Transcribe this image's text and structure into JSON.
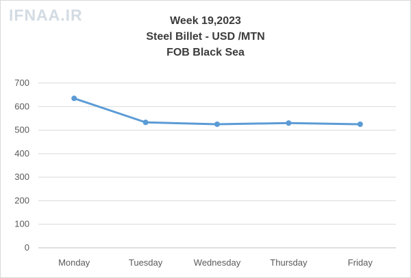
{
  "watermark": "IFNAA.IR",
  "chart_data": {
    "type": "line",
    "title": "Week 19,2023",
    "subtitle": "Steel Billet - USD /MTN",
    "subtitle2": "FOB Black Sea",
    "categories": [
      "Monday",
      "Tuesday",
      "Wednesday",
      "Thursday",
      "Friday"
    ],
    "series": [
      {
        "values": [
          635,
          533,
          525,
          530,
          525
        ]
      }
    ],
    "ylim": [
      0,
      700
    ],
    "yticks": [
      0,
      100,
      200,
      300,
      400,
      500,
      600,
      700
    ],
    "grid": true,
    "legend": "none",
    "colors": {
      "line": "#5b9bd5",
      "grid": "#d9d9d9",
      "axis": "#bfbfbf"
    }
  }
}
